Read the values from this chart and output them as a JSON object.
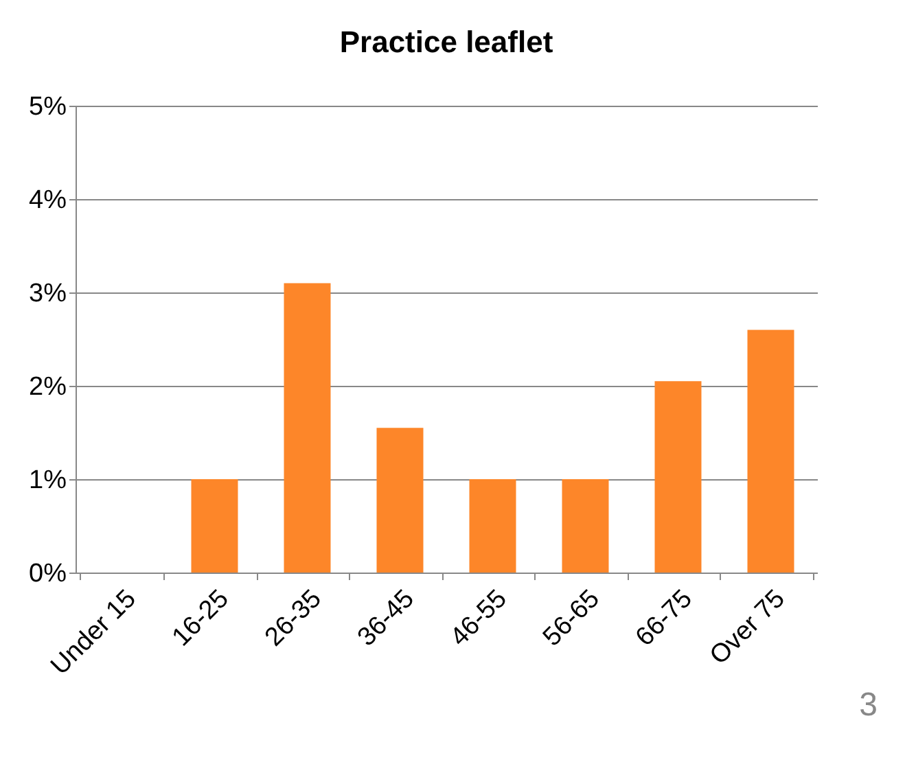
{
  "chart_data": {
    "type": "bar",
    "title": "Practice leaflet",
    "categories": [
      "Under 15",
      "16-25",
      "26-35",
      "36-45",
      "46-55",
      "56-65",
      "66-75",
      "Over 75"
    ],
    "values": [
      0,
      1.0,
      3.1,
      1.55,
      1.0,
      1.0,
      2.05,
      2.6
    ],
    "color": "#fd8629",
    "ylim": [
      0,
      5
    ],
    "yticks": [
      {
        "value": 0,
        "label": "0%"
      },
      {
        "value": 1,
        "label": "1%"
      },
      {
        "value": 2,
        "label": "2%"
      },
      {
        "value": 3,
        "label": "3%"
      },
      {
        "value": 4,
        "label": "4%"
      },
      {
        "value": 5,
        "label": "5%"
      }
    ],
    "grid": "y",
    "annotations": [
      "3"
    ]
  }
}
